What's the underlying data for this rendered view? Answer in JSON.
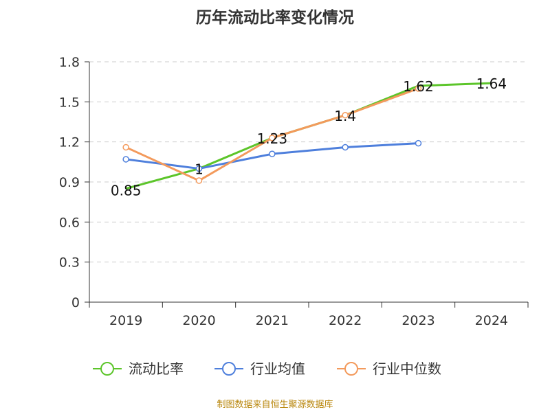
{
  "chart_data": {
    "type": "line",
    "title": "历年流动比率变化情况",
    "categories": [
      "2019",
      "2020",
      "2021",
      "2022",
      "2023",
      "2024"
    ],
    "ylim": [
      0,
      1.8
    ],
    "yticks": [
      "0",
      "0.3",
      "0.6",
      "0.9",
      "1.2",
      "1.5",
      "1.8"
    ],
    "grid": true,
    "legend_position": "bottom",
    "series": [
      {
        "name": "流动比率",
        "color": "#5cc52a",
        "values": [
          0.85,
          1,
          1.23,
          1.4,
          1.62,
          1.64
        ],
        "labels": [
          "0.85",
          "1",
          "1.23",
          "1.4",
          "1.62",
          "1.64"
        ]
      },
      {
        "name": "行业均值",
        "color": "#4e7fdc",
        "values": [
          1.07,
          1.0,
          1.11,
          1.16,
          1.19,
          null
        ]
      },
      {
        "name": "行业中位数",
        "color": "#f39a5c",
        "values": [
          1.16,
          0.91,
          1.23,
          1.4,
          1.6,
          null
        ]
      }
    ]
  },
  "footer": {
    "source": "制图数据来自恒生聚源数据库"
  }
}
